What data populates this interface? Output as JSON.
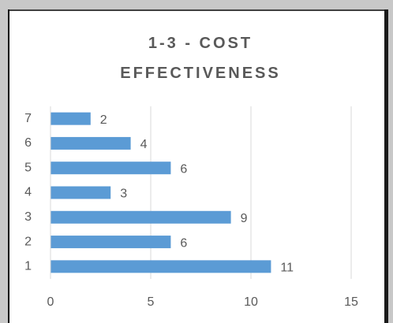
{
  "chart_data": {
    "type": "barh",
    "title": "1-3 - COST EFFECTIVENESS",
    "categories": [
      "1",
      "2",
      "3",
      "4",
      "5",
      "6",
      "7"
    ],
    "values": [
      11,
      6,
      9,
      3,
      6,
      4,
      2
    ],
    "color": "#5b9bd5",
    "xlim": [
      0,
      15
    ],
    "xticks": [
      0,
      5,
      10,
      15
    ],
    "grid": true
  }
}
